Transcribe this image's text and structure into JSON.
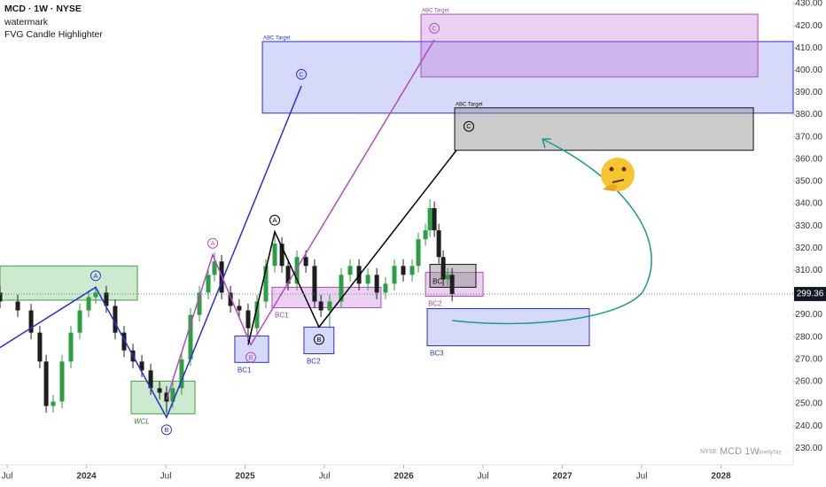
{
  "chart_data": {
    "type": "candlestick",
    "title": "MCD · 1W · NYSE",
    "indicators": [
      "watermark",
      "FVG Candle Highlighter"
    ],
    "x": [
      2023.455,
      2023.567,
      2023.651,
      2023.706,
      2023.746,
      2023.79,
      2023.846,
      2023.902,
      2023.958,
      2024.014,
      2024.058,
      2024.125,
      2024.181,
      2024.237,
      2024.293,
      2024.349,
      2024.405,
      2024.461,
      2024.505,
      2024.544,
      2024.6,
      2024.656,
      2024.712,
      2024.768,
      2024.807,
      2024.852,
      2024.908,
      2024.963,
      2025.019,
      2025.075,
      2025.131,
      2025.187,
      2025.232,
      2025.271,
      2025.327,
      2025.383,
      2025.438,
      2025.478,
      2025.533,
      2025.606,
      2025.662,
      2025.718,
      2025.774,
      2025.83,
      2025.885,
      2025.941,
      2025.997,
      2026.053,
      2026.092,
      2026.137,
      2026.165,
      2026.193,
      2026.221,
      2026.249,
      2026.277,
      2026.305
    ],
    "open": [
      300,
      296,
      292,
      282,
      269,
      249,
      251,
      269,
      282,
      292,
      298,
      300,
      294,
      282,
      274,
      269,
      265,
      257,
      255,
      251,
      257,
      270,
      290,
      300,
      308,
      314,
      300,
      294,
      292,
      284,
      296,
      312,
      322,
      312,
      304,
      316,
      312,
      296,
      292,
      296,
      308,
      312,
      304,
      308,
      300,
      304,
      312,
      308,
      312,
      324,
      328,
      338,
      328,
      316,
      306,
      308
    ],
    "high": [
      303,
      299,
      295,
      285,
      272,
      254,
      272,
      285,
      295,
      301,
      303,
      303,
      297,
      285,
      277,
      272,
      268,
      260,
      258,
      260,
      273,
      293,
      303,
      311,
      318,
      317,
      303,
      297,
      295,
      299,
      315,
      327,
      325,
      315,
      319,
      319,
      315,
      299,
      299,
      311,
      315,
      315,
      311,
      311,
      307,
      315,
      315,
      315,
      327,
      331,
      342,
      341,
      331,
      319,
      311,
      311
    ],
    "low": [
      293,
      289,
      279,
      266,
      246,
      246,
      248,
      266,
      279,
      289,
      295,
      291,
      279,
      271,
      266,
      262,
      254,
      252,
      246,
      248,
      254,
      267,
      287,
      297,
      305,
      297,
      291,
      289,
      278,
      281,
      293,
      309,
      309,
      301,
      301,
      309,
      293,
      289,
      284,
      293,
      305,
      301,
      301,
      297,
      297,
      301,
      305,
      305,
      309,
      321,
      325,
      325,
      313,
      303,
      303,
      296
    ],
    "close": [
      296,
      292,
      282,
      269,
      249,
      251,
      269,
      282,
      292,
      298,
      300,
      294,
      282,
      274,
      269,
      265,
      257,
      255,
      251,
      257,
      270,
      290,
      300,
      308,
      314,
      300,
      294,
      292,
      284,
      296,
      312,
      322,
      312,
      304,
      316,
      312,
      296,
      292,
      296,
      308,
      312,
      304,
      308,
      300,
      304,
      312,
      308,
      312,
      324,
      328,
      338,
      328,
      316,
      306,
      308,
      299.36
    ],
    "up_color": "#2e9e44",
    "down_color": "#1e1e1e",
    "xlim": [
      2023.455,
      2028.455
    ],
    "xticks": [
      {
        "value": 2023.5,
        "label": "Jul"
      },
      2024,
      {
        "value": 2024.5,
        "label": "Jul"
      },
      2025,
      {
        "value": 2025.5,
        "label": "Jul"
      },
      2026,
      {
        "value": 2026.5,
        "label": "Jul"
      },
      2027,
      {
        "value": 2027.5,
        "label": "Jul"
      },
      2028
    ],
    "ylim": [
      229.7,
      430
    ],
    "yticks": [
      {
        "value": 230,
        "label": "230.00"
      },
      {
        "value": 240,
        "label": "240.00"
      },
      {
        "value": 250,
        "label": "250.00"
      },
      {
        "value": 260,
        "label": "260.00"
      },
      {
        "value": 270,
        "label": "270.00"
      },
      {
        "value": 280,
        "label": "280.00"
      },
      {
        "value": 290,
        "label": "290.00"
      },
      {
        "value": 300,
        "label": "300.00"
      },
      {
        "value": 310,
        "label": "310.00"
      },
      {
        "value": 320,
        "label": "320.00"
      },
      {
        "value": 330,
        "label": "330.00"
      },
      {
        "value": 340,
        "label": "340.00"
      },
      {
        "value": 350,
        "label": "350.00"
      },
      {
        "value": 360,
        "label": "360.00"
      },
      {
        "value": 370,
        "label": "370.00"
      },
      {
        "value": 380,
        "label": "380.00"
      },
      {
        "value": 390,
        "label": "390.00"
      },
      {
        "value": 400,
        "label": "400.00"
      },
      {
        "value": 410,
        "label": "410.00"
      },
      {
        "value": 420,
        "label": "420.00"
      },
      {
        "value": 430,
        "label": "430.00"
      }
    ],
    "zones": [
      {
        "x": [
          2023.455,
          2024.321
        ],
        "y": [
          296.6,
          312
        ],
        "color": "green"
      },
      {
        "x": [
          2024.282,
          2024.684
        ],
        "y": [
          245.5,
          260.2
        ],
        "color": "green",
        "label": "WCL",
        "label_pos": "below"
      },
      {
        "x": [
          2024.935,
          2025.148
        ],
        "y": [
          268.6,
          280.5
        ],
        "color": "blue",
        "label": "BC1",
        "label_pos": "below"
      },
      {
        "x": [
          2025.17,
          2025.857
        ],
        "y": [
          293.2,
          302.4
        ],
        "color": "pink",
        "label": "BC1",
        "label_pos": "below"
      },
      {
        "x": [
          2025.371,
          2025.56
        ],
        "y": [
          272.5,
          284.5
        ],
        "color": "blue",
        "label": "BC2",
        "label_pos": "below"
      },
      {
        "x": [
          2026.137,
          2026.5
        ],
        "y": [
          298.4,
          309.1
        ],
        "color": "pink",
        "label": "BC2",
        "label_pos": "below"
      },
      {
        "x": [
          2026.165,
          2026.455
        ],
        "y": [
          302.4,
          312.7
        ],
        "color": "gray",
        "label": "BC",
        "label_pos": "inside"
      },
      {
        "x": [
          2026.148,
          2027.17
        ],
        "y": [
          276.1,
          292.8
        ],
        "color": "blue",
        "label": "BC3",
        "label_pos": "below"
      },
      {
        "x": [
          2025.109,
          2028.455
        ],
        "y": [
          380.7,
          412.9
        ],
        "color": "blue",
        "label": "ABC Target",
        "label_pos": "above"
      },
      {
        "x": [
          2026.109,
          2028.232
        ],
        "y": [
          397,
          425.2
        ],
        "color": "pink",
        "label": "ABC Target",
        "label_pos": "above"
      },
      {
        "x": [
          2026.321,
          2028.204
        ],
        "y": [
          364,
          383.1
        ],
        "color": "gray",
        "label": "ABC Target",
        "label_pos": "above"
      }
    ],
    "patterns": [
      {
        "color": "blue",
        "points": [
          [
            2023.455,
            275.3
          ],
          [
            2024.058,
            302.4
          ],
          [
            2024.505,
            243.9
          ],
          [
            2025.355,
            393
          ]
        ],
        "labels": [
          null,
          "A",
          "B",
          "C"
        ]
      },
      {
        "color": "pink",
        "points": [
          [
            2024.505,
            251.9
          ],
          [
            2024.796,
            317
          ],
          [
            2025.036,
            276.5
          ],
          [
            2026.193,
            413.7
          ]
        ],
        "labels": [
          null,
          "A",
          "B",
          "C"
        ]
      },
      {
        "color": "gray",
        "points": [
          [
            2025.019,
            276.5
          ],
          [
            2025.187,
            327.4
          ],
          [
            2025.466,
            284.5
          ],
          [
            2026.332,
            364
          ]
        ],
        "labels": [
          null,
          "A",
          "B",
          "C"
        ]
      }
    ],
    "watermark": [
      "NYSE",
      "MCD 1W",
      "SmellyTaz"
    ]
  }
}
